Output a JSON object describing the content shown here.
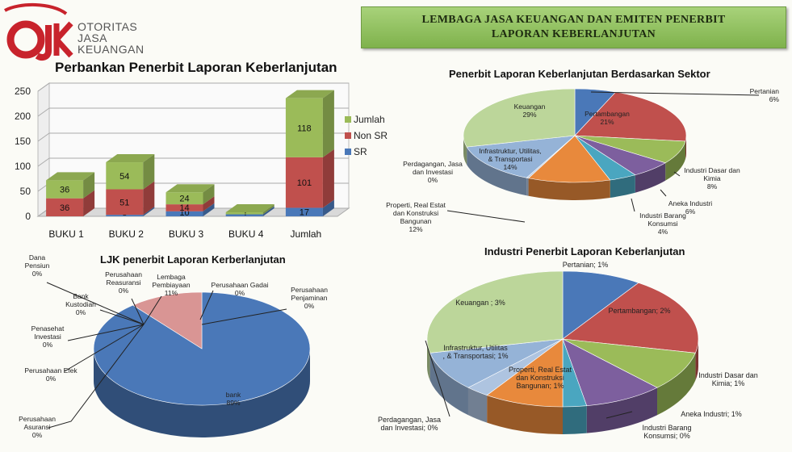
{
  "logo": {
    "mark": "OJK",
    "line1": "OTORITAS",
    "line2": "JASA",
    "line3": "KEUANGAN"
  },
  "header": {
    "line1": "LEMBAGA JASA KEUANGAN DAN EMITEN PENERBIT",
    "line2": "LAPORAN KEBERLANJUTAN"
  },
  "colors": {
    "sr": "#4a78b8",
    "non_sr": "#c0504d",
    "jumlah": "#9bbb59",
    "banner": "#8cc05a"
  },
  "chart_data": [
    {
      "type": "bar",
      "title": "Perbankan Penerbit  Laporan Keberlanjutan",
      "categories": [
        "BUKU 1",
        "BUKU 2",
        "BUKU 3",
        "BUKU 4",
        "Jumlah"
      ],
      "series": [
        {
          "name": "SR",
          "values": [
            0,
            3,
            10,
            4,
            17
          ]
        },
        {
          "name": "Non SR",
          "values": [
            36,
            51,
            14,
            0,
            101
          ]
        },
        {
          "name": "Jumlah",
          "values": [
            36,
            54,
            24,
            4,
            118
          ]
        }
      ],
      "y_ticks": [
        "0",
        "50",
        "100",
        "150",
        "200",
        "250"
      ],
      "ylim": [
        0,
        250
      ],
      "stacked": true,
      "grid": true,
      "legend": "right"
    },
    {
      "type": "pie",
      "title": "Penerbit Laporan Keberlanjutan Berdasarkan Sektor",
      "labels": [
        "Pertanian",
        "Pertambangan",
        "Industri Dasar dan Kimia",
        "Aneka Industri",
        "Industri Barang Konsumsi",
        "Properti, Real Estat dan Konstruksi Bangunan",
        "Perdagangan, Jasa dan Investasi",
        "Infrastruktur, Utilitas, & Transportasi",
        "Keuangan"
      ],
      "display_labels": [
        "Pertanian\n6%",
        "Pertambangan\n21%",
        "Industri Dasar dan\nKimia\n8%",
        "Aneka Industri\n6%",
        "Industri Barang\nKonsumsi\n4%",
        "Properti, Real Estat\ndan Konstruksi\nBangunan\n12%",
        "Perdagangan, Jasa\ndan Investasi\n0%",
        "Infrastruktur, Utilitas,\n& Transportasi\n14%",
        "Keuangan\n29%"
      ],
      "values": [
        6,
        21,
        8,
        6,
        4,
        12,
        0,
        14,
        29
      ]
    },
    {
      "type": "pie",
      "title": "LJK penerbit  Laporan Kerberlanjutan",
      "labels": [
        "bank",
        "Lembaga Pembiayaan",
        "Perusahaan Gadai",
        "Perusahaan Penjaminan",
        "Perusahaan Asuransi",
        "Perusahaan Efek",
        "Penasehat Investasi",
        "Bank Kustodian",
        "Dana Pensiun",
        "Perusahaan Reasuransi"
      ],
      "display_labels": [
        "bank\n89%",
        "Lembaga\nPembiayaan\n11%",
        "Perusahaan Gadai\n0%",
        "Perusahaan\nPenjaminan\n0%",
        "Perusahaan\nAsuransi\n0%",
        "Perusahaan Efek\n0%",
        "Penasehat\nInvestasi\n0%",
        "Bank\nKustodian\n0%",
        "Dana\nPensiun\n0%",
        "Perusahaan\nReasuransi\n0%"
      ],
      "values": [
        89,
        11,
        0,
        0,
        0,
        0,
        0,
        0,
        0,
        0
      ]
    },
    {
      "type": "pie",
      "title": "Industri Penerbit Laporan Keberlanjutan",
      "labels": [
        "Pertanian",
        "Pertambangan",
        "Industri Dasar dan Kimia",
        "Aneka Industri",
        "Industri Barang Konsumsi",
        "Properti, Real Estat dan Konstruksi Bangunan",
        "Perdagangan, Jasa dan Investasi",
        "Infrastruktur, Utilitas, & Transportasi",
        "Keuangan"
      ],
      "display_labels": [
        "Pertanian; 1%",
        "Pertambangan; 2%",
        "Industri Dasar dan\nKimia; 1%",
        "Aneka Industri; 1%",
        "Industri Barang\nKonsumsi; 0%",
        "Properti, Real Estat\ndan Konstruksi\nBangunan; 1%",
        "Perdagangan, Jasa\ndan Investasi; 0%",
        "Infrastruktur, Utilitas\n, & Transportasi; 1%",
        "Keuangan ; 3%"
      ],
      "values": [
        1,
        2,
        1,
        1,
        0,
        1,
        0,
        1,
        3
      ]
    }
  ]
}
